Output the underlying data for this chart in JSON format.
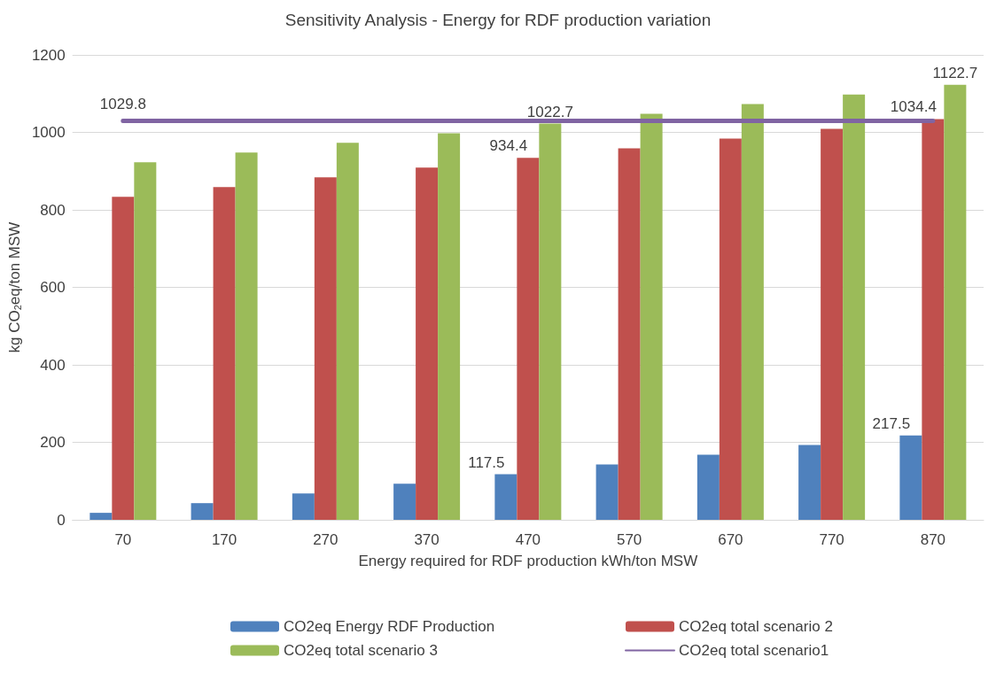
{
  "chart_data": {
    "type": "bar",
    "title": "Sensitivity Analysis - Energy for RDF production variation",
    "xlabel": "Energy required for RDF production kWh/ton MSW",
    "ylabel": "kg CO$_{2}$eq/ton MSW",
    "categories": [
      "70",
      "170",
      "270",
      "370",
      "470",
      "570",
      "670",
      "770",
      "870"
    ],
    "series": [
      {
        "name": "CO2eq Energy RDF Production",
        "color": "#4f81bd",
        "values": [
          18,
          43,
          68,
          93,
          117.5,
          143,
          168,
          193,
          217.5
        ],
        "value_labels": [
          null,
          null,
          null,
          null,
          "117.5",
          null,
          null,
          null,
          "217.5"
        ]
      },
      {
        "name": "CO2eq total scenario 2",
        "color": "#c0504d",
        "values": [
          834,
          859,
          884,
          909,
          934.4,
          959,
          984,
          1009,
          1034.4
        ],
        "value_labels": [
          null,
          null,
          null,
          null,
          "934.4",
          null,
          null,
          null,
          "1034.4"
        ]
      },
      {
        "name": "CO2eq total scenario 3",
        "color": "#9bbb59",
        "values": [
          923,
          948,
          973,
          998,
          1022.7,
          1048,
          1073,
          1098,
          1122.7
        ],
        "value_labels": [
          null,
          null,
          null,
          null,
          "1022.7",
          null,
          null,
          null,
          "1122.7"
        ]
      },
      {
        "name": "CO2eq total scenario1",
        "type": "line",
        "color": "#8064a2",
        "values": [
          1029.8,
          1030,
          1030,
          1030,
          1030,
          1030,
          1030,
          1030,
          1030
        ],
        "value_labels": [
          "1029.8",
          null,
          null,
          null,
          null,
          null,
          null,
          null,
          null
        ]
      }
    ],
    "ylim": [
      0,
      1200
    ],
    "yticks": [
      0,
      200,
      400,
      600,
      800,
      1000,
      1200
    ],
    "grid": "y",
    "legend": "bottom",
    "marker": "none",
    "line_style": "solid"
  }
}
